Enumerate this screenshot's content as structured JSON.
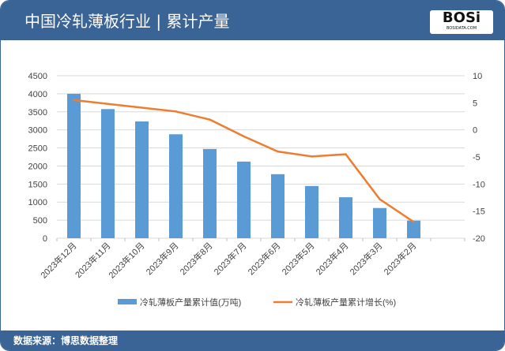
{
  "header": {
    "title": "中国冷轧薄板行业 | 累计产量",
    "logo_text": "BOSi",
    "logo_sub": "BOSIDATA.COM"
  },
  "footer": {
    "source": "数据来源：博思数据整理"
  },
  "colors": {
    "bar": "#5b9bd5",
    "line": "#ed7d31",
    "header": "#3a6396"
  },
  "chart_data": {
    "type": "bar+line",
    "categories": [
      "2023年12月",
      "2023年11月",
      "2023年10月",
      "2023年9月",
      "2023年8月",
      "2023年7月",
      "2023年6月",
      "2023年5月",
      "2023年4月",
      "2023年3月",
      "2023年2月"
    ],
    "series": [
      {
        "name": "冷轧薄板产量累计值(万吨)",
        "type": "bar",
        "axis": "left",
        "values": [
          4000,
          3576,
          3234,
          2878,
          2471,
          2122,
          1773,
          1446,
          1134,
          836,
          487
        ]
      },
      {
        "name": "冷轧薄板产量累计增长(%)",
        "type": "line",
        "axis": "right",
        "values": [
          5.5,
          4.8,
          4.1,
          3.4,
          1.9,
          -1.2,
          -4.0,
          -4.9,
          -4.5,
          -12.8,
          -17.0
        ]
      }
    ],
    "ylim_left": [
      0,
      4500
    ],
    "yticks_left": [
      0,
      500,
      1000,
      1500,
      2000,
      2500,
      3000,
      3500,
      4000,
      4500
    ],
    "ylim_right": [
      -20,
      10
    ],
    "yticks_right": [
      -20,
      -15,
      -10,
      -5,
      0,
      5,
      10
    ],
    "grid": true,
    "legend": "bottom"
  }
}
